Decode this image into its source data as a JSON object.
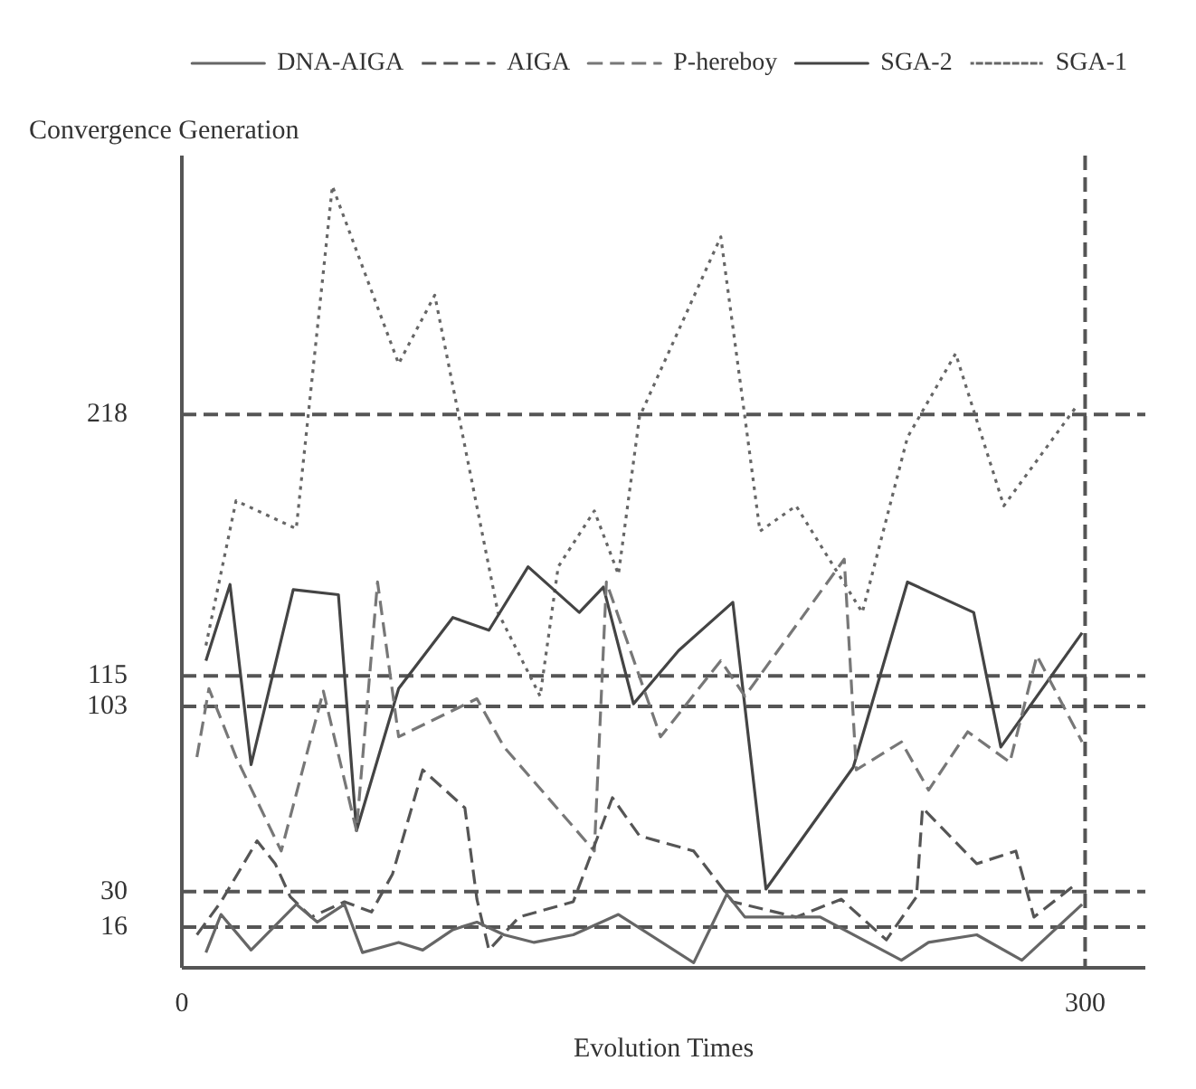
{
  "chart_data": {
    "type": "line",
    "xlabel": "Evolution Times",
    "ylabel": "Convergence Generation",
    "xlim": [
      0,
      320
    ],
    "xticks": [
      0,
      300
    ],
    "ylim": [
      0,
      320
    ],
    "yticks": [
      16,
      30,
      103,
      115,
      218
    ],
    "grid": false,
    "legend": "top right",
    "marker": "none",
    "series": [
      {
        "name": "DNA-AIGA",
        "color": "#666666",
        "line_style": "solid",
        "x": [
          8,
          13,
          23,
          38,
          45,
          54,
          60,
          72,
          80,
          90,
          98,
          107,
          117,
          130,
          145,
          170,
          181,
          187,
          212,
          239,
          248,
          264,
          279,
          299
        ],
        "values": [
          6,
          21,
          7,
          25,
          18,
          25,
          6,
          10,
          7,
          15,
          18,
          13,
          10,
          13,
          21,
          2,
          29,
          20,
          20,
          3,
          10,
          13,
          3,
          25
        ]
      },
      {
        "name": "AIGA",
        "color": "#555555",
        "line_style": "dashed",
        "x": [
          5,
          13,
          25,
          31,
          36,
          43,
          54,
          63,
          70,
          80,
          94,
          98,
          102,
          112,
          130,
          143,
          152,
          170,
          183,
          204,
          219,
          234,
          244,
          246,
          264,
          277,
          283,
          297
        ],
        "values": [
          13,
          26,
          50,
          41,
          28,
          20,
          26,
          22,
          37,
          78,
          63,
          27,
          7,
          20,
          26,
          67,
          52,
          46,
          26,
          20,
          27,
          11,
          28,
          63,
          41,
          46,
          20,
          33
        ]
      },
      {
        "name": "P-hereboy",
        "color": "#777777",
        "line_style": "dashed",
        "x": [
          5,
          9,
          18,
          33,
          47,
          58,
          65,
          72,
          98,
          107,
          137,
          141,
          159,
          179,
          187,
          220,
          224,
          239,
          248,
          261,
          275,
          284,
          299
        ],
        "values": [
          83,
          110,
          83,
          46,
          109,
          54,
          152,
          91,
          106,
          87,
          46,
          152,
          91,
          121,
          107,
          161,
          78,
          89,
          70,
          93,
          81,
          123,
          89
        ]
      },
      {
        "name": "SGA-2",
        "color": "#444444",
        "line_style": "solid",
        "x": [
          8,
          16,
          23,
          37,
          52,
          58,
          72,
          90,
          102,
          115,
          132,
          140,
          150,
          165,
          183,
          194,
          223,
          241,
          263,
          272,
          299
        ],
        "values": [
          121,
          151,
          80,
          149,
          147,
          54,
          110,
          138,
          133,
          158,
          140,
          150,
          104,
          125,
          144,
          31,
          79,
          152,
          140,
          87,
          132
        ]
      },
      {
        "name": "SGA-1",
        "color": "#666666",
        "line_style": "dotted",
        "x": [
          8,
          18,
          38,
          50,
          72,
          84,
          105,
          119,
          125,
          137,
          145,
          152,
          179,
          187,
          192,
          204,
          226,
          241,
          257,
          273,
          297
        ],
        "values": [
          127,
          184,
          173,
          308,
          238,
          265,
          140,
          107,
          158,
          180,
          155,
          217,
          288,
          217,
          172,
          182,
          140,
          209,
          242,
          182,
          221
        ]
      }
    ],
    "ref_lines": [
      {
        "axis": "y",
        "value": 16,
        "color": "#555555",
        "line_style": "dashed"
      },
      {
        "axis": "y",
        "value": 30,
        "color": "#555555",
        "line_style": "dashed"
      },
      {
        "axis": "y",
        "value": 103,
        "color": "#555555",
        "line_style": "dashed"
      },
      {
        "axis": "y",
        "value": 115,
        "color": "#555555",
        "line_style": "dashed"
      },
      {
        "axis": "y",
        "value": 218,
        "color": "#555555",
        "line_style": "dashed"
      },
      {
        "axis": "x",
        "value": 300,
        "color": "#555555",
        "line_style": "dashed"
      }
    ]
  }
}
